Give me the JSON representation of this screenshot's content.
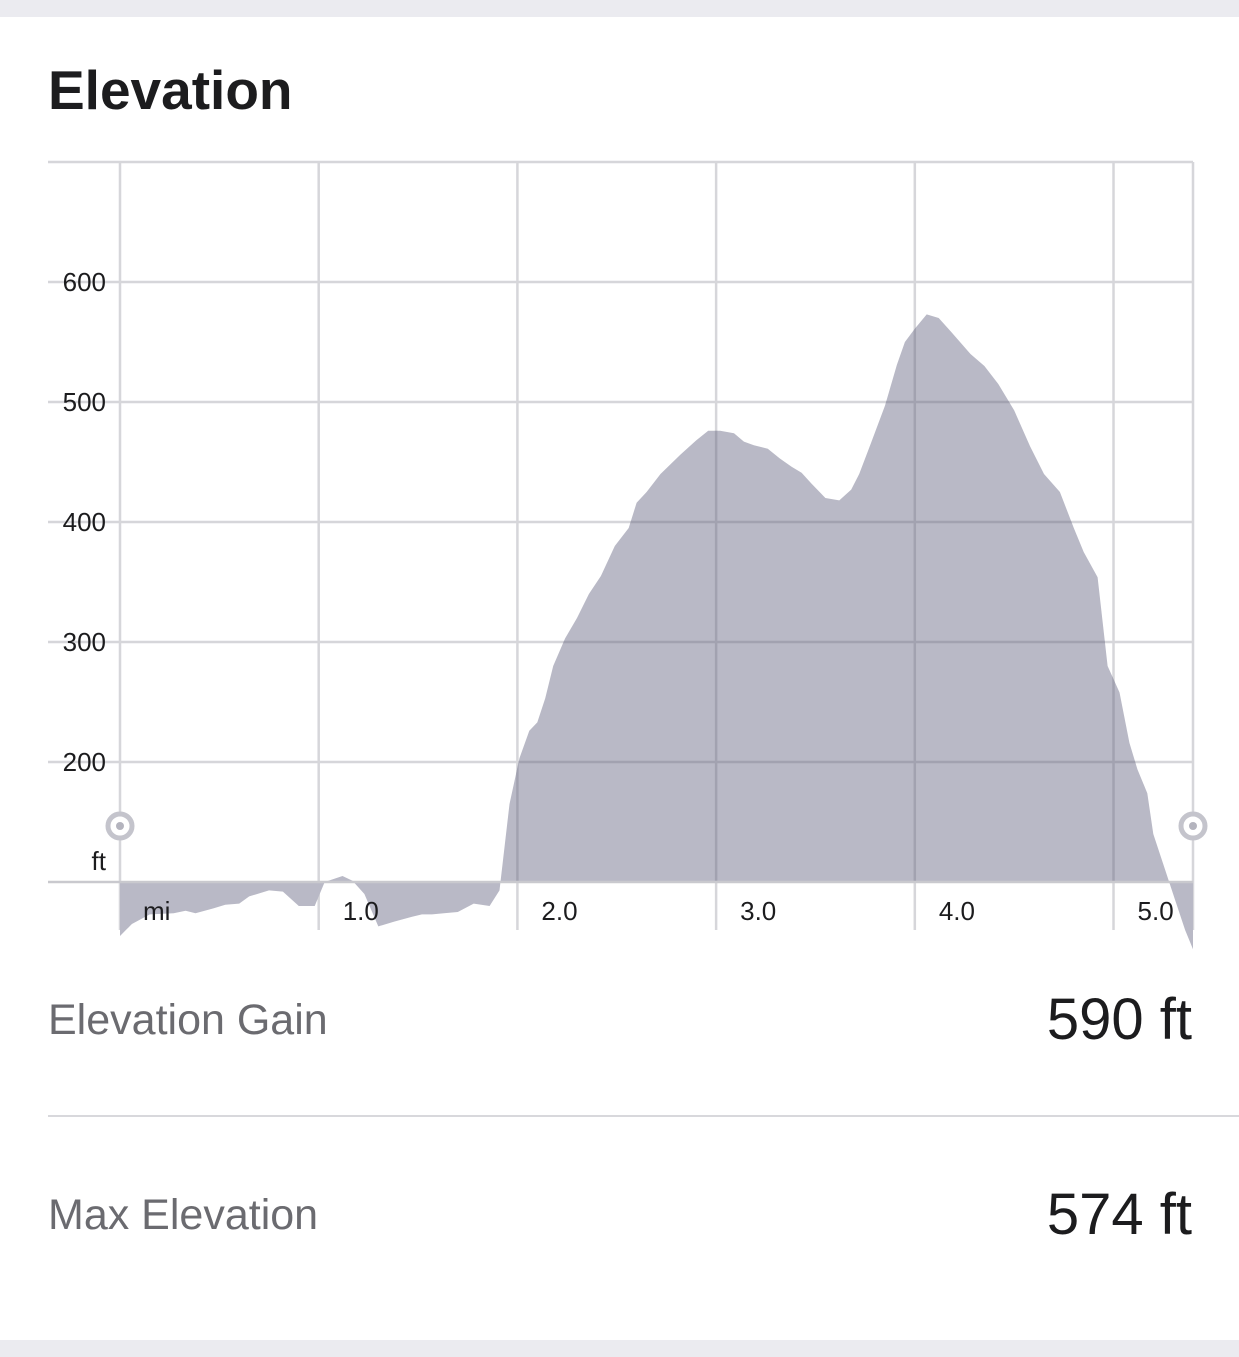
{
  "header": {
    "title": "Elevation"
  },
  "chart_data": {
    "type": "area",
    "x_unit_label": "mi",
    "y_unit_label": "ft",
    "xlim": [
      0,
      5.4
    ],
    "ylim": [
      0,
      600
    ],
    "y_ticks": [
      200,
      300,
      400,
      500,
      600
    ],
    "x_ticks": [
      1.0,
      2.0,
      3.0,
      4.0,
      5.0
    ],
    "x_tick_labels": [
      "1.0",
      "2.0",
      "3.0",
      "4.0",
      "5.0"
    ],
    "legend": "none",
    "grid": true,
    "fill_color": "#b9b9c6",
    "x": [
      0,
      0.06,
      0.15,
      0.27,
      0.33,
      0.38,
      0.47,
      0.53,
      0.6,
      0.65,
      0.75,
      0.82,
      0.9,
      0.98,
      1.03,
      1.12,
      1.17,
      1.23,
      1.3,
      1.38,
      1.47,
      1.52,
      1.57,
      1.63,
      1.7,
      1.78,
      1.86,
      1.91,
      1.96,
      2.01,
      2.06,
      2.1,
      2.14,
      2.18,
      2.24,
      2.3,
      2.36,
      2.42,
      2.49,
      2.56,
      2.6,
      2.65,
      2.72,
      2.82,
      2.9,
      2.96,
      3.02,
      3.09,
      3.14,
      3.19,
      3.26,
      3.32,
      3.38,
      3.43,
      3.48,
      3.55,
      3.62,
      3.68,
      3.72,
      3.78,
      3.85,
      3.91,
      3.95,
      4.0,
      4.06,
      4.12,
      4.18,
      4.28,
      4.35,
      4.42,
      4.5,
      4.58,
      4.65,
      4.73,
      4.8,
      4.85,
      4.92,
      4.97,
      5.03,
      5.08,
      5.12,
      5.17,
      5.2,
      5.26,
      5.31,
      5.36,
      5.4
    ],
    "y": [
      55,
      65,
      73,
      74,
      76,
      74,
      78,
      81,
      82,
      88,
      93,
      92,
      80,
      80,
      100,
      105,
      101,
      90,
      63,
      67,
      71,
      73,
      73,
      74,
      75,
      82,
      80,
      93,
      165,
      203,
      226,
      233,
      253,
      280,
      303,
      320,
      340,
      355,
      380,
      395,
      416,
      425,
      440,
      456,
      468,
      476,
      476,
      474,
      467,
      464,
      461,
      453,
      446,
      441,
      432,
      420,
      418,
      427,
      440,
      466,
      497,
      531,
      550,
      561,
      573,
      570,
      559,
      540,
      530,
      515,
      493,
      463,
      440,
      425,
      395,
      375,
      354,
      280,
      258,
      216,
      194,
      174,
      140,
      110,
      85,
      60,
      44
    ]
  },
  "stats": [
    {
      "label": "Elevation Gain",
      "value": "590 ft"
    },
    {
      "label": "Max Elevation",
      "value": "574 ft"
    }
  ],
  "colors": {
    "accent": "#b9b9c6",
    "text": "#1c1c1e",
    "secondary_text": "#6b6b70",
    "grid": "#d6d6da",
    "background": "#ebebf0"
  }
}
